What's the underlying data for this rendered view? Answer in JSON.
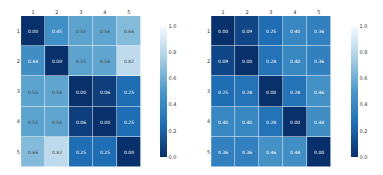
{
  "chart_data": [
    {
      "type": "heatmap",
      "x": [
        "1",
        "2",
        "3",
        "4",
        "5"
      ],
      "y": [
        "1",
        "2",
        "3",
        "4",
        "5"
      ],
      "values": [
        [
          0.0,
          0.45,
          0.55,
          0.56,
          0.66
        ],
        [
          0.44,
          0.0,
          0.55,
          0.56,
          0.82
        ],
        [
          0.55,
          0.56,
          0.0,
          0.06,
          0.25
        ],
        [
          0.55,
          0.56,
          0.06,
          0.0,
          0.25
        ],
        [
          0.66,
          0.82,
          0.25,
          0.25,
          0.0
        ]
      ],
      "value_labels": [
        [
          "0.00",
          "0.45",
          "0.55",
          "0.56",
          "0.66"
        ],
        [
          "0.44",
          "0.00",
          "0.55",
          "0.56",
          "0.82"
        ],
        [
          "0.55",
          "0.56",
          "0.00",
          "0.06",
          "0.25"
        ],
        [
          "0.55",
          "0.56",
          "0.06",
          "0.00",
          "0.25"
        ],
        [
          "0.66",
          "0.82",
          "0.25",
          "0.25",
          "0.00"
        ]
      ],
      "data_labels": true,
      "color_range": [
        0,
        1
      ],
      "color_ticks": [
        {
          "value": 0,
          "label": "0.0"
        },
        {
          "value": 0.2,
          "label": "0.2"
        },
        {
          "value": 0.4,
          "label": "0.4"
        },
        {
          "value": 0.6,
          "label": "0.6"
        },
        {
          "value": 0.8,
          "label": "0.8"
        },
        {
          "value": 1,
          "label": "1.0"
        }
      ]
    },
    {
      "type": "heatmap",
      "x": [
        "1",
        "2",
        "3",
        "4",
        "5"
      ],
      "y": [
        "1",
        "2",
        "3",
        "4",
        "5"
      ],
      "values": [
        [
          0.0,
          0.09,
          0.25,
          0.4,
          0.36
        ],
        [
          0.09,
          0.0,
          0.28,
          0.4,
          0.36
        ],
        [
          0.25,
          0.28,
          0.0,
          0.28,
          0.46
        ],
        [
          0.4,
          0.4,
          0.28,
          0.0,
          0.44
        ],
        [
          0.36,
          0.36,
          0.46,
          0.44,
          0.0
        ]
      ],
      "value_labels": [
        [
          "0.00",
          "0.09",
          "0.25",
          "0.40",
          "0.36"
        ],
        [
          "0.09",
          "0.00",
          "0.28",
          "0.40",
          "0.36"
        ],
        [
          "0.25",
          "0.28",
          "0.00",
          "0.28",
          "0.46"
        ],
        [
          "0.40",
          "0.40",
          "0.28",
          "0.00",
          "0.44"
        ],
        [
          "0.36",
          "0.36",
          "0.46",
          "0.44",
          "0.00"
        ]
      ],
      "data_labels": true,
      "color_range": [
        0,
        1
      ],
      "color_ticks": [
        {
          "value": 0,
          "label": "0.0"
        },
        {
          "value": 0.2,
          "label": "0.2"
        },
        {
          "value": 0.4,
          "label": "0.4"
        },
        {
          "value": 0.6,
          "label": "0.6"
        },
        {
          "value": 0.8,
          "label": "0.8"
        },
        {
          "value": 1,
          "label": "1.0"
        }
      ]
    }
  ]
}
